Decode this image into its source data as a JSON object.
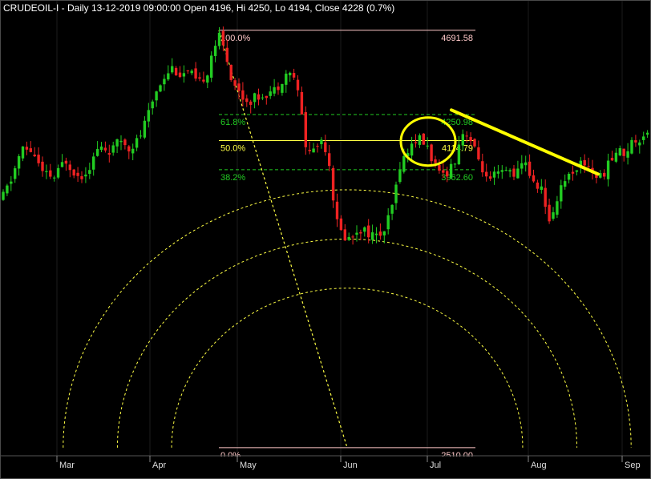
{
  "header": {
    "text": "CRUDEOIL-I - Daily 13-12-2019 09:00:00 Open 4196, Hi 4250, Lo 4194, Close 4228 (0.7%)"
  },
  "colors": {
    "background": "#000000",
    "up_candle": "#22cc22",
    "down_candle": "#ee2222",
    "fib_top_bottom": "#ffc8c8",
    "fib_618_382": "#22cc22",
    "fib_50": "#ffff44",
    "arc": "#ffff44",
    "annotation": "#ffff00",
    "axis_text": "#dddddd"
  },
  "chart_data": {
    "type": "candlestick",
    "symbol": "CRUDEOIL-I",
    "timeframe": "Daily",
    "ylim": [
      2480,
      4720
    ],
    "x_months": [
      "Mar",
      "Apr",
      "May",
      "Jun",
      "Jul",
      "Aug",
      "Sep"
    ],
    "fib_levels": [
      {
        "pct": "100.0%",
        "price": 4691.58,
        "price_label": "4691.58"
      },
      {
        "pct": "61.8%",
        "price": 4250.98,
        "price_label": "4250.98"
      },
      {
        "pct": "50.0%",
        "price": 4114.79,
        "price_label": "4114.79"
      },
      {
        "pct": "38.2%",
        "price": 3962.6,
        "price_label": "3962.60"
      },
      {
        "pct": "0.0%",
        "price": 2510.0,
        "price_label": "2510.00"
      }
    ],
    "close_path": [
      {
        "x": 0,
        "c": 3800
      },
      {
        "x": 12,
        "c": 3900
      },
      {
        "x": 26,
        "c": 4070
      },
      {
        "x": 40,
        "c": 4060
      },
      {
        "x": 52,
        "c": 3940
      },
      {
        "x": 68,
        "c": 3920
      },
      {
        "x": 80,
        "c": 4020
      },
      {
        "x": 98,
        "c": 3920
      },
      {
        "x": 112,
        "c": 3990
      },
      {
        "x": 122,
        "c": 4080
      },
      {
        "x": 138,
        "c": 4060
      },
      {
        "x": 150,
        "c": 4120
      },
      {
        "x": 160,
        "c": 4080
      },
      {
        "x": 172,
        "c": 4120
      },
      {
        "x": 184,
        "c": 4250
      },
      {
        "x": 194,
        "c": 4380
      },
      {
        "x": 206,
        "c": 4470
      },
      {
        "x": 214,
        "c": 4500
      },
      {
        "x": 224,
        "c": 4460
      },
      {
        "x": 236,
        "c": 4470
      },
      {
        "x": 246,
        "c": 4400
      },
      {
        "x": 258,
        "c": 4480
      },
      {
        "x": 264,
        "c": 4590
      },
      {
        "x": 272,
        "c": 4660
      },
      {
        "x": 280,
        "c": 4580
      },
      {
        "x": 288,
        "c": 4440
      },
      {
        "x": 298,
        "c": 4360
      },
      {
        "x": 308,
        "c": 4320
      },
      {
        "x": 318,
        "c": 4340
      },
      {
        "x": 328,
        "c": 4360
      },
      {
        "x": 342,
        "c": 4380
      },
      {
        "x": 356,
        "c": 4470
      },
      {
        "x": 366,
        "c": 4450
      },
      {
        "x": 374,
        "c": 4290
      },
      {
        "x": 382,
        "c": 4040
      },
      {
        "x": 394,
        "c": 4090
      },
      {
        "x": 402,
        "c": 4130
      },
      {
        "x": 410,
        "c": 3990
      },
      {
        "x": 418,
        "c": 3700
      },
      {
        "x": 426,
        "c": 3620
      },
      {
        "x": 436,
        "c": 3600
      },
      {
        "x": 446,
        "c": 3660
      },
      {
        "x": 456,
        "c": 3640
      },
      {
        "x": 468,
        "c": 3610
      },
      {
        "x": 480,
        "c": 3650
      },
      {
        "x": 490,
        "c": 3800
      },
      {
        "x": 498,
        "c": 3990
      },
      {
        "x": 508,
        "c": 4060
      },
      {
        "x": 516,
        "c": 4120
      },
      {
        "x": 524,
        "c": 4120
      },
      {
        "x": 532,
        "c": 4080
      },
      {
        "x": 538,
        "c": 4020
      },
      {
        "x": 546,
        "c": 3930
      },
      {
        "x": 556,
        "c": 3950
      },
      {
        "x": 566,
        "c": 4010
      },
      {
        "x": 574,
        "c": 4150
      },
      {
        "x": 582,
        "c": 4160
      },
      {
        "x": 592,
        "c": 4050
      },
      {
        "x": 600,
        "c": 3980
      },
      {
        "x": 608,
        "c": 3880
      },
      {
        "x": 616,
        "c": 3930
      },
      {
        "x": 624,
        "c": 3940
      },
      {
        "x": 634,
        "c": 3960
      },
      {
        "x": 644,
        "c": 3940
      },
      {
        "x": 654,
        "c": 4020
      },
      {
        "x": 664,
        "c": 3880
      },
      {
        "x": 674,
        "c": 3880
      },
      {
        "x": 682,
        "c": 3680
      },
      {
        "x": 690,
        "c": 3760
      },
      {
        "x": 700,
        "c": 3900
      },
      {
        "x": 710,
        "c": 3940
      },
      {
        "x": 720,
        "c": 3990
      },
      {
        "x": 730,
        "c": 4000
      },
      {
        "x": 740,
        "c": 3940
      },
      {
        "x": 748,
        "c": 3920
      },
      {
        "x": 758,
        "c": 3990
      },
      {
        "x": 768,
        "c": 4060
      },
      {
        "x": 778,
        "c": 4050
      },
      {
        "x": 788,
        "c": 4110
      },
      {
        "x": 798,
        "c": 4130
      },
      {
        "x": 808,
        "c": 4180
      }
    ]
  }
}
